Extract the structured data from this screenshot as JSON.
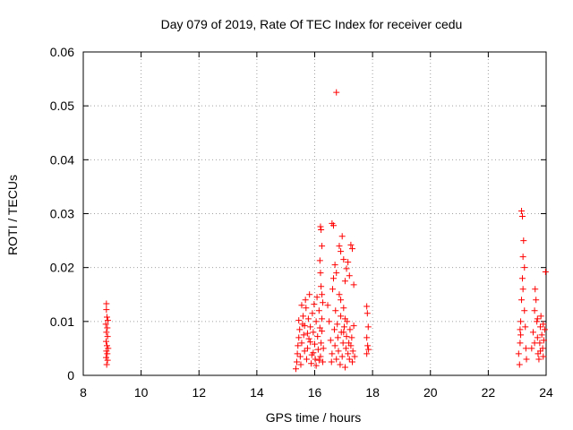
{
  "chart_data": {
    "type": "scatter",
    "title": "Day 079 of 2019, Rate Of TEC Index for receiver cedu",
    "xlabel": "GPS time / hours",
    "ylabel": "ROTI / TECUs",
    "xlim": [
      8,
      24
    ],
    "ylim": [
      0,
      0.06
    ],
    "xticks": [
      "8",
      "10",
      "12",
      "14",
      "16",
      "18",
      "20",
      "22",
      "24"
    ],
    "yticks": [
      "0",
      "0.01",
      "0.02",
      "0.03",
      "0.04",
      "0.05",
      "0.06"
    ],
    "grid": true,
    "marker": "+",
    "marker_color": "#ff0000",
    "series": [
      {
        "name": "ROTI",
        "points": [
          [
            8.8,
            0.0133
          ],
          [
            8.8,
            0.0122
          ],
          [
            8.82,
            0.0108
          ],
          [
            8.85,
            0.0102
          ],
          [
            8.78,
            0.0095
          ],
          [
            8.83,
            0.0088
          ],
          [
            8.8,
            0.008
          ],
          [
            8.84,
            0.0072
          ],
          [
            8.79,
            0.0063
          ],
          [
            8.82,
            0.0055
          ],
          [
            8.86,
            0.005
          ],
          [
            8.8,
            0.0045
          ],
          [
            8.83,
            0.004
          ],
          [
            8.79,
            0.0033
          ],
          [
            8.84,
            0.0028
          ],
          [
            8.81,
            0.002
          ],
          [
            15.35,
            0.0012
          ],
          [
            15.38,
            0.0025
          ],
          [
            15.4,
            0.004
          ],
          [
            15.42,
            0.0055
          ],
          [
            15.45,
            0.007
          ],
          [
            15.48,
            0.0085
          ],
          [
            15.5,
            0.0035
          ],
          [
            15.52,
            0.002
          ],
          [
            15.55,
            0.006
          ],
          [
            15.58,
            0.0095
          ],
          [
            15.6,
            0.011
          ],
          [
            15.62,
            0.0075
          ],
          [
            15.65,
            0.0045
          ],
          [
            15.68,
            0.014
          ],
          [
            15.7,
            0.0125
          ],
          [
            15.72,
            0.003
          ],
          [
            15.75,
            0.005
          ],
          [
            15.78,
            0.0105
          ],
          [
            15.8,
            0.0068
          ],
          [
            15.82,
            0.015
          ],
          [
            15.85,
            0.009
          ],
          [
            15.88,
            0.0022
          ],
          [
            15.9,
            0.0038
          ],
          [
            15.92,
            0.0115
          ],
          [
            15.95,
            0.008
          ],
          [
            15.98,
            0.0132
          ],
          [
            16.0,
            0.0058
          ],
          [
            16.02,
            0.003
          ],
          [
            16.05,
            0.01
          ],
          [
            16.08,
            0.0145
          ],
          [
            16.1,
            0.0072
          ],
          [
            16.12,
            0.0048
          ],
          [
            16.15,
            0.012
          ],
          [
            16.18,
            0.0088
          ],
          [
            16.2,
            0.0035
          ],
          [
            16.22,
            0.006
          ],
          [
            16.25,
            0.0105
          ],
          [
            16.28,
            0.0025
          ],
          [
            15.45,
            0.0102
          ],
          [
            15.55,
            0.013
          ],
          [
            15.65,
            0.0092
          ],
          [
            15.75,
            0.0078
          ],
          [
            15.85,
            0.0062
          ],
          [
            15.95,
            0.0042
          ],
          [
            16.05,
            0.0018
          ],
          [
            16.15,
            0.0028
          ],
          [
            16.25,
            0.0082
          ],
          [
            16.3,
            0.005
          ],
          [
            16.2,
            0.0276
          ],
          [
            16.22,
            0.027
          ],
          [
            16.25,
            0.024
          ],
          [
            16.18,
            0.0213
          ],
          [
            16.2,
            0.019
          ],
          [
            16.22,
            0.0165
          ],
          [
            16.25,
            0.015
          ],
          [
            16.28,
            0.0135
          ],
          [
            16.45,
            0.013
          ],
          [
            16.5,
            0.01
          ],
          [
            16.55,
            0.0065
          ],
          [
            16.58,
            0.0025
          ],
          [
            16.6,
            0.004
          ],
          [
            16.62,
            0.016
          ],
          [
            16.65,
            0.018
          ],
          [
            16.68,
            0.0085
          ],
          [
            16.7,
            0.0055
          ],
          [
            16.72,
            0.012
          ],
          [
            16.75,
            0.003
          ],
          [
            16.78,
            0.0095
          ],
          [
            16.8,
            0.007
          ],
          [
            16.82,
            0.0045
          ],
          [
            16.85,
            0.015
          ],
          [
            16.88,
            0.002
          ],
          [
            16.9,
            0.011
          ],
          [
            16.92,
            0.008
          ],
          [
            16.95,
            0.0035
          ],
          [
            16.98,
            0.006
          ],
          [
            17.0,
            0.0125
          ],
          [
            17.02,
            0.009
          ],
          [
            17.05,
            0.0015
          ],
          [
            17.08,
            0.005
          ],
          [
            17.1,
            0.0072
          ],
          [
            17.12,
            0.01
          ],
          [
            17.15,
            0.004
          ],
          [
            17.18,
            0.006
          ],
          [
            17.2,
            0.003
          ],
          [
            17.22,
            0.0085
          ],
          [
            17.25,
            0.0055
          ],
          [
            17.28,
            0.007
          ],
          [
            17.3,
            0.0025
          ],
          [
            17.32,
            0.0045
          ],
          [
            17.35,
            0.0092
          ],
          [
            17.38,
            0.0035
          ],
          [
            16.6,
            0.0282
          ],
          [
            16.65,
            0.0278
          ],
          [
            16.7,
            0.0205
          ],
          [
            16.75,
            0.019
          ],
          [
            16.85,
            0.024
          ],
          [
            16.9,
            0.023
          ],
          [
            16.95,
            0.0258
          ],
          [
            17.0,
            0.0215
          ],
          [
            17.05,
            0.0175
          ],
          [
            17.1,
            0.0198
          ],
          [
            17.15,
            0.021
          ],
          [
            17.2,
            0.0185
          ],
          [
            17.25,
            0.0242
          ],
          [
            17.3,
            0.0235
          ],
          [
            17.35,
            0.0168
          ],
          [
            17.0,
            0.008
          ],
          [
            17.05,
            0.0105
          ],
          [
            16.9,
            0.014
          ],
          [
            16.75,
            0.0525
          ],
          [
            17.8,
            0.0128
          ],
          [
            17.82,
            0.0115
          ],
          [
            17.85,
            0.009
          ],
          [
            17.8,
            0.007
          ],
          [
            17.83,
            0.0055
          ],
          [
            17.86,
            0.0048
          ],
          [
            17.8,
            0.004
          ],
          [
            23.05,
            0.004
          ],
          [
            23.08,
            0.002
          ],
          [
            23.1,
            0.006
          ],
          [
            23.12,
            0.01
          ],
          [
            23.15,
            0.014
          ],
          [
            23.18,
            0.018
          ],
          [
            23.2,
            0.022
          ],
          [
            23.22,
            0.025
          ],
          [
            23.15,
            0.0305
          ],
          [
            23.18,
            0.0295
          ],
          [
            23.1,
            0.0085
          ],
          [
            23.12,
            0.0075
          ],
          [
            23.25,
            0.012
          ],
          [
            23.28,
            0.009
          ],
          [
            23.3,
            0.005
          ],
          [
            23.32,
            0.003
          ],
          [
            23.2,
            0.016
          ],
          [
            23.25,
            0.02
          ],
          [
            23.5,
            0.005
          ],
          [
            23.55,
            0.008
          ],
          [
            23.6,
            0.012
          ],
          [
            23.62,
            0.016
          ],
          [
            23.65,
            0.014
          ],
          [
            23.68,
            0.01
          ],
          [
            23.7,
            0.007
          ],
          [
            23.72,
            0.004
          ],
          [
            23.75,
            0.003
          ],
          [
            23.78,
            0.006
          ],
          [
            23.8,
            0.009
          ],
          [
            23.82,
            0.011
          ],
          [
            23.85,
            0.0075
          ],
          [
            23.88,
            0.005
          ],
          [
            23.9,
            0.0035
          ],
          [
            23.92,
            0.0065
          ],
          [
            23.95,
            0.0085
          ],
          [
            23.98,
            0.0192
          ],
          [
            23.6,
            0.006
          ],
          [
            23.7,
            0.0105
          ],
          [
            23.8,
            0.0045
          ],
          [
            23.9,
            0.0095
          ]
        ]
      }
    ]
  }
}
